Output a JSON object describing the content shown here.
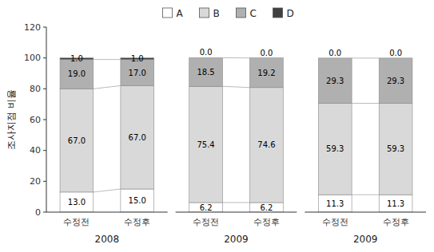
{
  "chart_data": [
    {
      "type": "bar",
      "stacked": true,
      "data_labels": true,
      "xlabel": "2008",
      "ylabel": "조사지점 비율",
      "categories": [
        "수정전",
        "수정후"
      ],
      "ylim": [
        0,
        120
      ],
      "yticks": [
        0,
        20,
        40,
        60,
        80,
        100,
        120
      ],
      "series": [
        {
          "name": "A",
          "color": "#ffffff",
          "values": [
            13.0,
            15.0
          ],
          "value_labels": [
            "13.0",
            "15.0"
          ]
        },
        {
          "name": "B",
          "color": "#d9d9d9",
          "values": [
            67.0,
            67.0
          ],
          "value_labels": [
            "67.0",
            "67.0"
          ]
        },
        {
          "name": "C",
          "color": "#b0b0b0",
          "values": [
            19.0,
            17.0
          ],
          "value_labels": [
            "19.0",
            "17.0"
          ]
        },
        {
          "name": "D",
          "color": "#404040",
          "values": [
            1.0,
            1.0
          ],
          "value_labels": [
            "1.0",
            "1.0"
          ]
        }
      ]
    },
    {
      "type": "bar",
      "stacked": true,
      "data_labels": true,
      "tick_labels": "x",
      "xlabel": "2009",
      "categories": [
        "수정전",
        "수정후"
      ],
      "ylim": [
        0,
        120
      ],
      "series": [
        {
          "name": "A",
          "color": "#ffffff",
          "values": [
            6.2,
            6.2
          ]
        },
        {
          "name": "B",
          "color": "#d9d9d9",
          "values": [
            75.4,
            74.6
          ]
        },
        {
          "name": "C",
          "color": "#b0b0b0",
          "values": [
            18.5,
            19.2
          ]
        },
        {
          "name": "D",
          "color": "#404040",
          "values": [
            0.0,
            0.0
          ],
          "value_labels": [
            "0.0",
            "0.0"
          ]
        }
      ]
    },
    {
      "type": "bar",
      "stacked": true,
      "data_labels": true,
      "tick_labels": "x",
      "xlabel": "2009",
      "categories": [
        "수정전",
        "수정후"
      ],
      "ylim": [
        0,
        120
      ],
      "series": [
        {
          "name": "A",
          "color": "#ffffff",
          "values": [
            11.3,
            11.3
          ]
        },
        {
          "name": "B",
          "color": "#d9d9d9",
          "values": [
            59.3,
            59.3
          ]
        },
        {
          "name": "C",
          "color": "#b0b0b0",
          "values": [
            29.3,
            29.3
          ]
        },
        {
          "name": "D",
          "color": "#404040",
          "values": [
            0.0,
            0.0
          ],
          "value_labels": [
            "0.0",
            "0.0"
          ]
        }
      ]
    }
  ]
}
